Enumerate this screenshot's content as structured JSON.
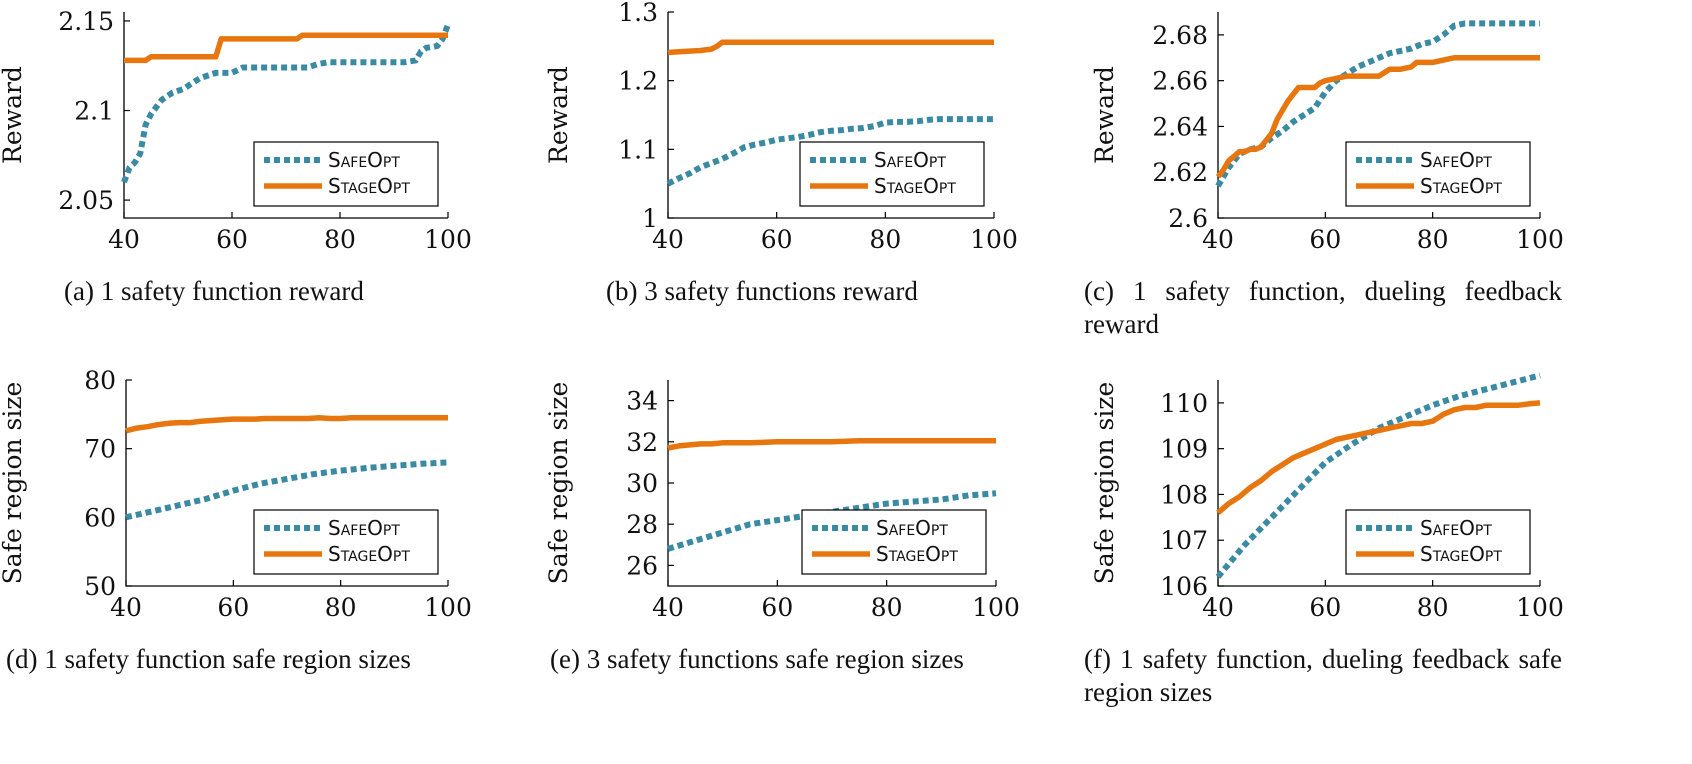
{
  "colors": {
    "safeopt": "#3b8aa4",
    "stageopt": "#e8760f"
  },
  "chart_data": [
    {
      "type": "line",
      "caption": "(a) 1 safety function reward",
      "ylabel": "Reward",
      "xlim": [
        40,
        100
      ],
      "ylim": [
        2.04,
        2.155
      ],
      "xticks": [
        40,
        60,
        80,
        100
      ],
      "yticks": [
        2.05,
        2.1,
        2.15
      ],
      "ytick_labels": [
        "2.05",
        "2.1",
        "2.15"
      ],
      "legend": "bottom-right",
      "series": [
        {
          "name": "SafeOpt",
          "style": "dotted",
          "x": [
            40,
            41,
            42,
            43,
            44,
            45,
            46,
            47,
            48,
            49,
            50,
            51,
            52,
            53,
            54,
            55,
            56,
            57,
            58,
            59,
            60,
            62,
            64,
            66,
            68,
            70,
            72,
            74,
            75,
            76,
            78,
            80,
            82,
            84,
            86,
            88,
            90,
            92,
            94,
            95,
            96,
            98,
            99,
            100
          ],
          "y": [
            2.06,
            2.068,
            2.071,
            2.076,
            2.092,
            2.098,
            2.102,
            2.106,
            2.108,
            2.11,
            2.111,
            2.112,
            2.114,
            2.116,
            2.118,
            2.119,
            2.12,
            2.121,
            2.121,
            2.121,
            2.121,
            2.124,
            2.124,
            2.124,
            2.124,
            2.124,
            2.124,
            2.124,
            2.125,
            2.126,
            2.127,
            2.127,
            2.127,
            2.127,
            2.127,
            2.127,
            2.127,
            2.127,
            2.128,
            2.133,
            2.135,
            2.136,
            2.14,
            2.148
          ]
        },
        {
          "name": "StageOpt",
          "style": "solid",
          "x": [
            40,
            44,
            45,
            57,
            58,
            72,
            73,
            100
          ],
          "y": [
            2.128,
            2.128,
            2.13,
            2.13,
            2.14,
            2.14,
            2.142,
            2.142
          ]
        }
      ]
    },
    {
      "type": "line",
      "caption": "(b) 3 safety functions reward",
      "ylabel": "Reward",
      "xlim": [
        40,
        100
      ],
      "ylim": [
        1.0,
        1.3
      ],
      "xticks": [
        40,
        60,
        80,
        100
      ],
      "yticks": [
        1.0,
        1.1,
        1.2,
        1.3
      ],
      "ytick_labels": [
        "1",
        "1.1",
        "1.2",
        "1.3"
      ],
      "legend": "bottom-right",
      "series": [
        {
          "name": "SafeOpt",
          "style": "dotted",
          "x": [
            40,
            42,
            44,
            46,
            48,
            50,
            52,
            54,
            56,
            58,
            60,
            62,
            64,
            66,
            68,
            70,
            72,
            74,
            76,
            78,
            80,
            82,
            84,
            86,
            88,
            90,
            92,
            94,
            96,
            98,
            100
          ],
          "y": [
            1.05,
            1.058,
            1.065,
            1.074,
            1.08,
            1.086,
            1.094,
            1.103,
            1.107,
            1.11,
            1.114,
            1.116,
            1.118,
            1.121,
            1.125,
            1.127,
            1.128,
            1.13,
            1.131,
            1.134,
            1.139,
            1.14,
            1.14,
            1.141,
            1.143,
            1.144,
            1.144,
            1.144,
            1.144,
            1.144,
            1.144
          ]
        },
        {
          "name": "StageOpt",
          "style": "solid",
          "x": [
            40,
            42,
            44,
            46,
            48,
            49,
            50,
            100
          ],
          "y": [
            1.241,
            1.242,
            1.243,
            1.244,
            1.246,
            1.25,
            1.256,
            1.256
          ]
        }
      ]
    },
    {
      "type": "line",
      "caption": "(c) 1 safety function, dueling feedback reward",
      "ylabel": "Reward",
      "xlim": [
        40,
        100
      ],
      "ylim": [
        2.6,
        2.69
      ],
      "xticks": [
        40,
        60,
        80,
        100
      ],
      "yticks": [
        2.6,
        2.62,
        2.64,
        2.66,
        2.68
      ],
      "ytick_labels": [
        "2.6",
        "2.62",
        "2.64",
        "2.66",
        "2.68"
      ],
      "legend": "bottom-right",
      "series": [
        {
          "name": "SafeOpt",
          "style": "dotted",
          "x": [
            40,
            42,
            44,
            46,
            48,
            50,
            52,
            54,
            56,
            58,
            60,
            62,
            64,
            66,
            68,
            70,
            72,
            74,
            76,
            78,
            80,
            82,
            84,
            86,
            88,
            90,
            92,
            94,
            96,
            98,
            100
          ],
          "y": [
            2.614,
            2.622,
            2.628,
            2.63,
            2.631,
            2.635,
            2.638,
            2.642,
            2.645,
            2.648,
            2.655,
            2.66,
            2.663,
            2.666,
            2.668,
            2.67,
            2.672,
            2.673,
            2.674,
            2.676,
            2.677,
            2.68,
            2.684,
            2.685,
            2.685,
            2.685,
            2.685,
            2.685,
            2.685,
            2.685,
            2.685
          ]
        },
        {
          "name": "StageOpt",
          "style": "solid",
          "x": [
            40,
            41,
            42,
            43,
            44,
            45,
            46,
            47,
            48,
            49,
            50,
            51,
            52,
            53,
            54,
            55,
            56,
            57,
            58,
            59,
            60,
            62,
            64,
            66,
            68,
            70,
            72,
            74,
            76,
            77,
            78,
            80,
            82,
            84,
            100
          ],
          "y": [
            2.618,
            2.621,
            2.625,
            2.627,
            2.629,
            2.629,
            2.63,
            2.63,
            2.631,
            2.634,
            2.637,
            2.643,
            2.647,
            2.651,
            2.654,
            2.657,
            2.657,
            2.657,
            2.657,
            2.659,
            2.66,
            2.661,
            2.662,
            2.662,
            2.662,
            2.662,
            2.665,
            2.665,
            2.666,
            2.668,
            2.668,
            2.668,
            2.669,
            2.67,
            2.67
          ]
        }
      ]
    },
    {
      "type": "line",
      "caption": "(d) 1 safety function safe region sizes",
      "ylabel": "Safe region size",
      "xlim": [
        40,
        100
      ],
      "ylim": [
        50,
        80
      ],
      "xticks": [
        40,
        60,
        80,
        100
      ],
      "yticks": [
        50,
        60,
        70,
        80
      ],
      "ytick_labels": [
        "50",
        "60",
        "70",
        "80"
      ],
      "legend": "bottom-right",
      "series": [
        {
          "name": "SafeOpt",
          "style": "dotted",
          "x": [
            40,
            45,
            50,
            55,
            60,
            65,
            70,
            75,
            80,
            85,
            90,
            95,
            100
          ],
          "y": [
            60.0,
            60.9,
            61.8,
            62.7,
            63.9,
            64.9,
            65.6,
            66.3,
            66.8,
            67.2,
            67.5,
            67.8,
            68.0
          ]
        },
        {
          "name": "StageOpt",
          "style": "solid",
          "x": [
            40,
            42,
            44,
            46,
            48,
            50,
            52,
            54,
            56,
            58,
            60,
            62,
            64,
            66,
            68,
            70,
            72,
            74,
            76,
            78,
            80,
            82,
            84,
            86,
            88,
            90,
            92,
            94,
            96,
            98,
            100
          ],
          "y": [
            72.6,
            73.0,
            73.2,
            73.5,
            73.7,
            73.8,
            73.8,
            74.0,
            74.1,
            74.2,
            74.3,
            74.3,
            74.3,
            74.4,
            74.4,
            74.4,
            74.4,
            74.4,
            74.5,
            74.4,
            74.4,
            74.5,
            74.5,
            74.5,
            74.5,
            74.5,
            74.5,
            74.5,
            74.5,
            74.5,
            74.5
          ]
        }
      ]
    },
    {
      "type": "line",
      "caption": "(e) 3 safety functions safe region sizes",
      "ylabel": "Safe region size",
      "xlim": [
        40,
        100
      ],
      "ylim": [
        25,
        35
      ],
      "xticks": [
        40,
        60,
        80,
        100
      ],
      "yticks": [
        26,
        28,
        30,
        32,
        34
      ],
      "ytick_labels": [
        "26",
        "28",
        "30",
        "32",
        "34"
      ],
      "legend": "bottom-right",
      "series": [
        {
          "name": "SafeOpt",
          "style": "dotted",
          "x": [
            40,
            45,
            50,
            55,
            60,
            65,
            70,
            75,
            80,
            85,
            90,
            95,
            100
          ],
          "y": [
            26.8,
            27.2,
            27.6,
            28.0,
            28.2,
            28.4,
            28.6,
            28.8,
            29.0,
            29.1,
            29.2,
            29.4,
            29.5
          ]
        },
        {
          "name": "StageOpt",
          "style": "solid",
          "x": [
            40,
            42,
            44,
            46,
            48,
            50,
            55,
            60,
            65,
            70,
            75,
            80,
            85,
            90,
            95,
            100
          ],
          "y": [
            31.7,
            31.8,
            31.85,
            31.9,
            31.9,
            31.95,
            31.95,
            32.0,
            32.0,
            32.0,
            32.05,
            32.05,
            32.05,
            32.05,
            32.05,
            32.05
          ]
        }
      ]
    },
    {
      "type": "line",
      "caption": "(f) 1 safety function, dueling feedback safe region sizes",
      "ylabel": "Safe region size",
      "xlim": [
        40,
        100
      ],
      "ylim": [
        106,
        110.5
      ],
      "xticks": [
        40,
        60,
        80,
        100
      ],
      "yticks": [
        106,
        107,
        108,
        109,
        110
      ],
      "ytick_labels": [
        "106",
        "107",
        "108",
        "109",
        "110"
      ],
      "legend": "bottom-right",
      "series": [
        {
          "name": "SafeOpt",
          "style": "dotted",
          "x": [
            40,
            45,
            50,
            55,
            60,
            65,
            70,
            75,
            80,
            85,
            90,
            95,
            100
          ],
          "y": [
            106.2,
            106.9,
            107.5,
            108.1,
            108.7,
            109.1,
            109.45,
            109.7,
            109.95,
            110.15,
            110.3,
            110.45,
            110.6
          ]
        },
        {
          "name": "StageOpt",
          "style": "solid",
          "x": [
            40,
            42,
            44,
            46,
            48,
            50,
            52,
            54,
            56,
            58,
            60,
            62,
            64,
            66,
            68,
            70,
            72,
            74,
            76,
            78,
            80,
            82,
            84,
            86,
            88,
            90,
            92,
            94,
            96,
            98,
            100
          ],
          "y": [
            107.6,
            107.8,
            107.95,
            108.15,
            108.3,
            108.5,
            108.65,
            108.8,
            108.9,
            109.0,
            109.1,
            109.2,
            109.25,
            109.3,
            109.35,
            109.4,
            109.45,
            109.5,
            109.55,
            109.55,
            109.6,
            109.75,
            109.85,
            109.9,
            109.9,
            109.95,
            109.95,
            109.95,
            109.95,
            109.98,
            110.0
          ]
        }
      ]
    }
  ]
}
